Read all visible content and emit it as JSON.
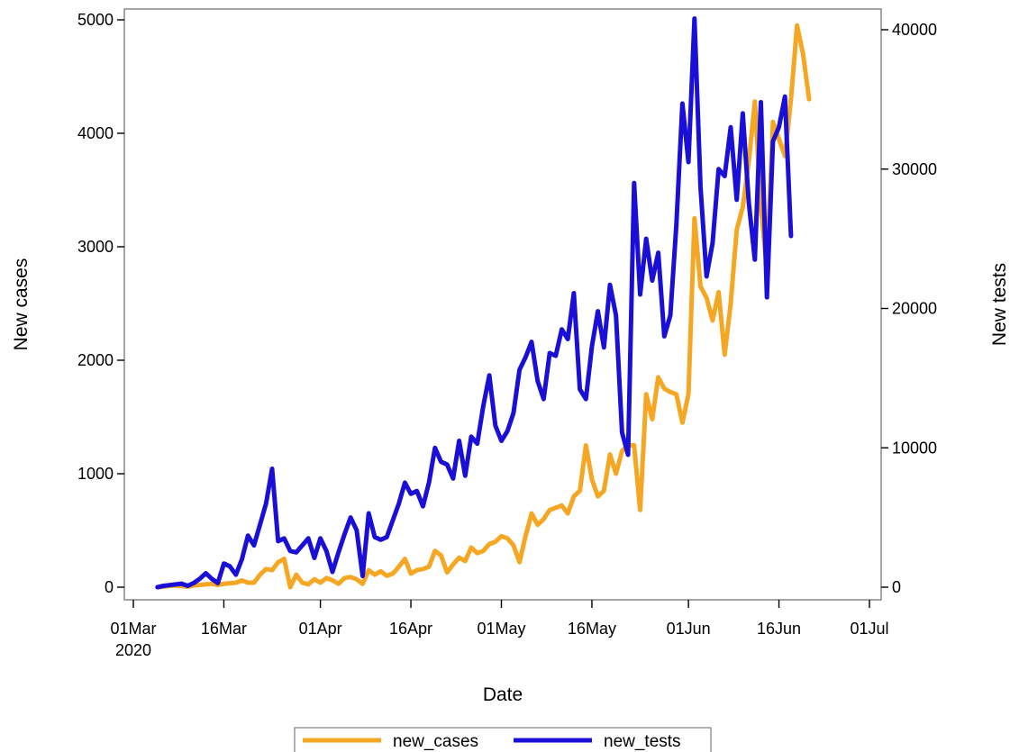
{
  "chart_data": {
    "type": "line",
    "xlabel": "Date",
    "x_axis": {
      "range": [
        "2020-03-01",
        "2020-07-01"
      ],
      "ticks": [
        {
          "date": "2020-03-01",
          "label": "01Mar",
          "sublabel": "2020"
        },
        {
          "date": "2020-03-16",
          "label": "16Mar"
        },
        {
          "date": "2020-04-01",
          "label": "01Apr"
        },
        {
          "date": "2020-04-16",
          "label": "16Apr"
        },
        {
          "date": "2020-05-01",
          "label": "01May"
        },
        {
          "date": "2020-05-16",
          "label": "16May"
        },
        {
          "date": "2020-06-01",
          "label": "01Jun"
        },
        {
          "date": "2020-06-16",
          "label": "16Jun"
        },
        {
          "date": "2020-07-01",
          "label": "01Jul"
        }
      ]
    },
    "y_left": {
      "label": "New cases",
      "range": [
        0,
        5000
      ],
      "ticks": [
        0,
        1000,
        2000,
        3000,
        4000,
        5000
      ]
    },
    "y_right": {
      "label": "New tests",
      "range": [
        0,
        40000
      ],
      "ticks": [
        0,
        10000,
        20000,
        30000,
        40000
      ]
    },
    "grid": false,
    "legend": "bottom",
    "series": [
      {
        "name": "new_cases",
        "axis": "left",
        "color": "#f5a623",
        "points": [
          [
            "2020-03-05",
            0
          ],
          [
            "2020-03-06",
            5
          ],
          [
            "2020-03-07",
            10
          ],
          [
            "2020-03-08",
            15
          ],
          [
            "2020-03-09",
            10
          ],
          [
            "2020-03-10",
            5
          ],
          [
            "2020-03-11",
            15
          ],
          [
            "2020-03-12",
            20
          ],
          [
            "2020-03-13",
            25
          ],
          [
            "2020-03-14",
            30
          ],
          [
            "2020-03-15",
            20
          ],
          [
            "2020-03-16",
            30
          ],
          [
            "2020-03-17",
            35
          ],
          [
            "2020-03-18",
            40
          ],
          [
            "2020-03-19",
            60
          ],
          [
            "2020-03-20",
            40
          ],
          [
            "2020-03-21",
            40
          ],
          [
            "2020-03-22",
            110
          ],
          [
            "2020-03-23",
            160
          ],
          [
            "2020-03-24",
            150
          ],
          [
            "2020-03-25",
            220
          ],
          [
            "2020-03-26",
            250
          ],
          [
            "2020-03-27",
            0
          ],
          [
            "2020-03-28",
            110
          ],
          [
            "2020-03-29",
            40
          ],
          [
            "2020-03-30",
            25
          ],
          [
            "2020-03-31",
            70
          ],
          [
            "2020-04-01",
            40
          ],
          [
            "2020-04-02",
            80
          ],
          [
            "2020-04-03",
            60
          ],
          [
            "2020-04-04",
            30
          ],
          [
            "2020-04-05",
            80
          ],
          [
            "2020-04-06",
            90
          ],
          [
            "2020-04-07",
            70
          ],
          [
            "2020-04-08",
            30
          ],
          [
            "2020-04-09",
            150
          ],
          [
            "2020-04-10",
            110
          ],
          [
            "2020-04-11",
            140
          ],
          [
            "2020-04-12",
            100
          ],
          [
            "2020-04-13",
            120
          ],
          [
            "2020-04-14",
            180
          ],
          [
            "2020-04-15",
            250
          ],
          [
            "2020-04-16",
            120
          ],
          [
            "2020-04-17",
            150
          ],
          [
            "2020-04-18",
            160
          ],
          [
            "2020-04-19",
            180
          ],
          [
            "2020-04-20",
            320
          ],
          [
            "2020-04-21",
            280
          ],
          [
            "2020-04-22",
            130
          ],
          [
            "2020-04-23",
            200
          ],
          [
            "2020-04-24",
            260
          ],
          [
            "2020-04-25",
            230
          ],
          [
            "2020-04-26",
            350
          ],
          [
            "2020-04-27",
            300
          ],
          [
            "2020-04-28",
            320
          ],
          [
            "2020-04-29",
            380
          ],
          [
            "2020-04-30",
            400
          ],
          [
            "2020-05-01",
            450
          ],
          [
            "2020-05-02",
            430
          ],
          [
            "2020-05-03",
            370
          ],
          [
            "2020-05-04",
            220
          ],
          [
            "2020-05-05",
            450
          ],
          [
            "2020-05-06",
            650
          ],
          [
            "2020-05-07",
            550
          ],
          [
            "2020-05-08",
            600
          ],
          [
            "2020-05-09",
            680
          ],
          [
            "2020-05-10",
            700
          ],
          [
            "2020-05-11",
            720
          ],
          [
            "2020-05-12",
            650
          ],
          [
            "2020-05-13",
            800
          ],
          [
            "2020-05-14",
            850
          ],
          [
            "2020-05-15",
            1250
          ],
          [
            "2020-05-16",
            950
          ],
          [
            "2020-05-17",
            800
          ],
          [
            "2020-05-18",
            850
          ],
          [
            "2020-05-19",
            1170
          ],
          [
            "2020-05-20",
            1000
          ],
          [
            "2020-05-21",
            1200
          ],
          [
            "2020-05-22",
            1250
          ],
          [
            "2020-05-23",
            1250
          ],
          [
            "2020-05-24",
            680
          ],
          [
            "2020-05-25",
            1700
          ],
          [
            "2020-05-26",
            1480
          ],
          [
            "2020-05-27",
            1850
          ],
          [
            "2020-05-28",
            1750
          ],
          [
            "2020-05-29",
            1720
          ],
          [
            "2020-05-30",
            1700
          ],
          [
            "2020-05-31",
            1450
          ],
          [
            "2020-06-01",
            1700
          ],
          [
            "2020-06-02",
            3250
          ],
          [
            "2020-06-03",
            2650
          ],
          [
            "2020-06-04",
            2550
          ],
          [
            "2020-06-05",
            2350
          ],
          [
            "2020-06-06",
            2600
          ],
          [
            "2020-06-07",
            2050
          ],
          [
            "2020-06-08",
            2500
          ],
          [
            "2020-06-09",
            3150
          ],
          [
            "2020-06-10",
            3350
          ],
          [
            "2020-06-11",
            3750
          ],
          [
            "2020-06-12",
            4280
          ],
          [
            "2020-06-13",
            3350
          ],
          [
            "2020-06-14",
            2800
          ],
          [
            "2020-06-15",
            4100
          ],
          [
            "2020-06-16",
            3950
          ],
          [
            "2020-06-17",
            3800
          ],
          [
            "2020-06-18",
            4300
          ],
          [
            "2020-06-19",
            4950
          ],
          [
            "2020-06-20",
            4700
          ],
          [
            "2020-06-21",
            4300
          ]
        ]
      },
      {
        "name": "new_tests",
        "axis": "right",
        "color": "#1a0fd6",
        "points": [
          [
            "2020-03-05",
            0
          ],
          [
            "2020-03-06",
            100
          ],
          [
            "2020-03-07",
            150
          ],
          [
            "2020-03-08",
            200
          ],
          [
            "2020-03-09",
            250
          ],
          [
            "2020-03-10",
            100
          ],
          [
            "2020-03-11",
            300
          ],
          [
            "2020-03-12",
            600
          ],
          [
            "2020-03-13",
            1000
          ],
          [
            "2020-03-14",
            600
          ],
          [
            "2020-03-15",
            300
          ],
          [
            "2020-03-16",
            1700
          ],
          [
            "2020-03-17",
            1500
          ],
          [
            "2020-03-18",
            900
          ],
          [
            "2020-03-19",
            2000
          ],
          [
            "2020-03-20",
            3700
          ],
          [
            "2020-03-21",
            3000
          ],
          [
            "2020-03-22",
            4500
          ],
          [
            "2020-03-23",
            6000
          ],
          [
            "2020-03-24",
            8500
          ],
          [
            "2020-03-25",
            3300
          ],
          [
            "2020-03-26",
            3500
          ],
          [
            "2020-03-27",
            2600
          ],
          [
            "2020-03-28",
            2500
          ],
          [
            "2020-03-29",
            3000
          ],
          [
            "2020-03-30",
            3500
          ],
          [
            "2020-03-31",
            2100
          ],
          [
            "2020-04-01",
            3500
          ],
          [
            "2020-04-02",
            2600
          ],
          [
            "2020-04-03",
            1100
          ],
          [
            "2020-04-04",
            2500
          ],
          [
            "2020-04-05",
            3800
          ],
          [
            "2020-04-06",
            5000
          ],
          [
            "2020-04-07",
            4100
          ],
          [
            "2020-04-08",
            800
          ],
          [
            "2020-04-09",
            5300
          ],
          [
            "2020-04-10",
            3600
          ],
          [
            "2020-04-11",
            3400
          ],
          [
            "2020-04-12",
            3600
          ],
          [
            "2020-04-13",
            4800
          ],
          [
            "2020-04-14",
            6000
          ],
          [
            "2020-04-15",
            7500
          ],
          [
            "2020-04-16",
            6700
          ],
          [
            "2020-04-17",
            6900
          ],
          [
            "2020-04-18",
            5800
          ],
          [
            "2020-04-19",
            7500
          ],
          [
            "2020-04-20",
            10000
          ],
          [
            "2020-04-21",
            9000
          ],
          [
            "2020-04-22",
            8800
          ],
          [
            "2020-04-23",
            7800
          ],
          [
            "2020-04-24",
            10500
          ],
          [
            "2020-04-25",
            8000
          ],
          [
            "2020-04-26",
            10800
          ],
          [
            "2020-04-27",
            10300
          ],
          [
            "2020-04-28",
            13000
          ],
          [
            "2020-04-29",
            15200
          ],
          [
            "2020-04-30",
            11600
          ],
          [
            "2020-05-01",
            10500
          ],
          [
            "2020-05-02",
            11200
          ],
          [
            "2020-05-03",
            12500
          ],
          [
            "2020-05-04",
            15600
          ],
          [
            "2020-05-05",
            16500
          ],
          [
            "2020-05-06",
            17600
          ],
          [
            "2020-05-07",
            14800
          ],
          [
            "2020-05-08",
            13500
          ],
          [
            "2020-05-09",
            16800
          ],
          [
            "2020-05-10",
            16600
          ],
          [
            "2020-05-11",
            18500
          ],
          [
            "2020-05-12",
            17800
          ],
          [
            "2020-05-13",
            21100
          ],
          [
            "2020-05-14",
            14200
          ],
          [
            "2020-05-15",
            13500
          ],
          [
            "2020-05-16",
            17300
          ],
          [
            "2020-05-17",
            19800
          ],
          [
            "2020-05-18",
            17200
          ],
          [
            "2020-05-19",
            21700
          ],
          [
            "2020-05-20",
            19500
          ],
          [
            "2020-05-21",
            11100
          ],
          [
            "2020-05-22",
            9500
          ],
          [
            "2020-05-23",
            29000
          ],
          [
            "2020-05-24",
            21000
          ],
          [
            "2020-05-25",
            25000
          ],
          [
            "2020-05-26",
            22000
          ],
          [
            "2020-05-27",
            24000
          ],
          [
            "2020-05-28",
            18000
          ],
          [
            "2020-05-29",
            19500
          ],
          [
            "2020-05-30",
            26000
          ],
          [
            "2020-05-31",
            34700
          ],
          [
            "2020-06-01",
            30500
          ],
          [
            "2020-06-02",
            40800
          ],
          [
            "2020-06-03",
            28700
          ],
          [
            "2020-06-04",
            22300
          ],
          [
            "2020-06-05",
            24700
          ],
          [
            "2020-06-06",
            30000
          ],
          [
            "2020-06-07",
            29500
          ],
          [
            "2020-06-08",
            33000
          ],
          [
            "2020-06-09",
            27800
          ],
          [
            "2020-06-10",
            34000
          ],
          [
            "2020-06-11",
            27600
          ],
          [
            "2020-06-12",
            23500
          ],
          [
            "2020-06-13",
            34800
          ],
          [
            "2020-06-14",
            20800
          ],
          [
            "2020-06-15",
            32000
          ],
          [
            "2020-06-16",
            33000
          ],
          [
            "2020-06-17",
            35200
          ],
          [
            "2020-06-18",
            25200
          ]
        ]
      }
    ]
  }
}
